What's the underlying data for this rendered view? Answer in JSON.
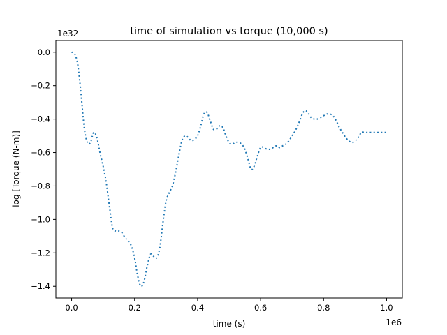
{
  "chart_data": {
    "type": "line",
    "title": "time of simulation vs torque (10,000 s)",
    "xlabel": "time (s)",
    "ylabel": "log [Torque (N-m)]",
    "x_offset_label": "1e6",
    "y_offset_label": "1e32",
    "xlim": [
      -0.05,
      1.05
    ],
    "ylim": [
      -1.47,
      0.07
    ],
    "x_ticks": [
      0.0,
      0.2,
      0.4,
      0.6,
      0.8,
      1.0
    ],
    "x_tick_labels": [
      "0.0",
      "0.2",
      "0.4",
      "0.6",
      "0.8",
      "1.0"
    ],
    "y_ticks": [
      0.0,
      -0.2,
      -0.4,
      -0.6,
      -0.8,
      -1.0,
      -1.2,
      -1.4
    ],
    "y_tick_labels": [
      "0.0",
      "−0.2",
      "−0.4",
      "−0.6",
      "−0.8",
      "−1.0",
      "−1.2",
      "−1.4"
    ],
    "line_color": "#1f77b4",
    "line_style": "dotted",
    "grid": false,
    "legend": false,
    "series": [
      {
        "x": [
          0.0,
          0.01,
          0.02,
          0.03,
          0.04,
          0.05,
          0.06,
          0.07,
          0.08,
          0.09,
          0.1,
          0.11,
          0.12,
          0.13,
          0.14,
          0.15,
          0.16,
          0.17,
          0.18,
          0.19,
          0.2,
          0.21,
          0.22,
          0.23,
          0.24,
          0.25,
          0.26,
          0.27,
          0.28,
          0.29,
          0.3,
          0.31,
          0.32,
          0.33,
          0.34,
          0.35,
          0.36,
          0.37,
          0.38,
          0.39,
          0.4,
          0.41,
          0.42,
          0.43,
          0.44,
          0.45,
          0.46,
          0.47,
          0.48,
          0.49,
          0.5,
          0.51,
          0.52,
          0.53,
          0.54,
          0.55,
          0.56,
          0.57,
          0.58,
          0.59,
          0.6,
          0.61,
          0.62,
          0.63,
          0.64,
          0.65,
          0.66,
          0.67,
          0.68,
          0.69,
          0.7,
          0.71,
          0.72,
          0.73,
          0.74,
          0.75,
          0.76,
          0.77,
          0.78,
          0.79,
          0.8,
          0.81,
          0.82,
          0.83,
          0.84,
          0.85,
          0.86,
          0.87,
          0.88,
          0.89,
          0.9,
          0.91,
          0.92,
          0.93,
          0.94,
          0.95,
          0.96,
          0.97,
          0.98,
          0.99,
          1.0
        ],
        "y": [
          0.0,
          -0.01,
          -0.08,
          -0.25,
          -0.45,
          -0.54,
          -0.54,
          -0.48,
          -0.51,
          -0.6,
          -0.68,
          -0.78,
          -0.92,
          -1.05,
          -1.07,
          -1.07,
          -1.08,
          -1.11,
          -1.13,
          -1.16,
          -1.23,
          -1.34,
          -1.4,
          -1.37,
          -1.28,
          -1.21,
          -1.22,
          -1.23,
          -1.17,
          -1.02,
          -0.89,
          -0.84,
          -0.8,
          -0.72,
          -0.62,
          -0.53,
          -0.5,
          -0.51,
          -0.53,
          -0.52,
          -0.5,
          -0.44,
          -0.37,
          -0.36,
          -0.41,
          -0.46,
          -0.46,
          -0.44,
          -0.45,
          -0.5,
          -0.54,
          -0.55,
          -0.54,
          -0.54,
          -0.55,
          -0.58,
          -0.64,
          -0.7,
          -0.68,
          -0.62,
          -0.57,
          -0.57,
          -0.58,
          -0.58,
          -0.57,
          -0.56,
          -0.57,
          -0.56,
          -0.55,
          -0.53,
          -0.5,
          -0.47,
          -0.43,
          -0.38,
          -0.35,
          -0.36,
          -0.39,
          -0.4,
          -0.4,
          -0.39,
          -0.38,
          -0.37,
          -0.37,
          -0.38,
          -0.41,
          -0.45,
          -0.48,
          -0.51,
          -0.53,
          -0.54,
          -0.53,
          -0.51,
          -0.48,
          -0.48,
          -0.48,
          -0.48,
          -0.48,
          -0.48,
          -0.48,
          -0.48,
          -0.48
        ]
      }
    ]
  }
}
